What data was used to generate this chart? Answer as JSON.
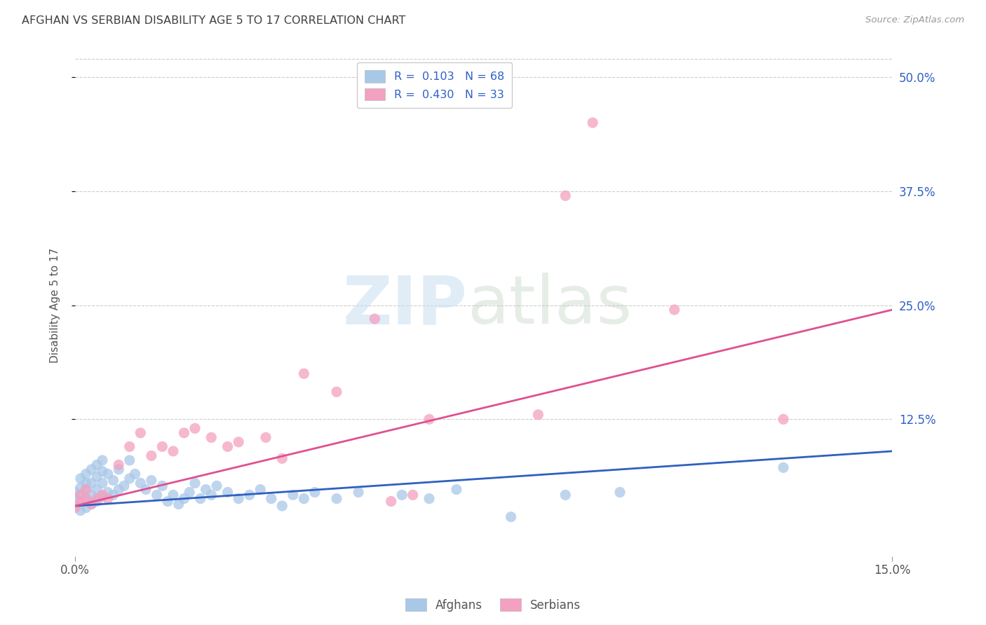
{
  "title": "AFGHAN VS SERBIAN DISABILITY AGE 5 TO 17 CORRELATION CHART",
  "source": "Source: ZipAtlas.com",
  "ylabel": "Disability Age 5 to 17",
  "ytick_labels": [
    "50.0%",
    "37.5%",
    "25.0%",
    "12.5%"
  ],
  "ytick_values": [
    0.5,
    0.375,
    0.25,
    0.125
  ],
  "xlim": [
    0.0,
    0.15
  ],
  "ylim": [
    -0.025,
    0.525
  ],
  "afghan_R": 0.103,
  "afghan_N": 68,
  "serbian_R": 0.43,
  "serbian_N": 33,
  "afghan_color": "#a8c8e8",
  "serbian_color": "#f4a0c0",
  "afghan_line_color": "#3060c0",
  "serbian_line_color": "#e05090",
  "legend_text_color": "#3060c8",
  "title_color": "#404040",
  "background_color": "#ffffff",
  "grid_color": "#cccccc",
  "afghan_line_y0": 0.03,
  "afghan_line_y1": 0.09,
  "serbian_line_y0": 0.03,
  "serbian_line_y1": 0.245,
  "afghans_x": [
    0.0,
    0.0,
    0.0,
    0.001,
    0.001,
    0.001,
    0.001,
    0.001,
    0.002,
    0.002,
    0.002,
    0.002,
    0.002,
    0.003,
    0.003,
    0.003,
    0.003,
    0.004,
    0.004,
    0.004,
    0.004,
    0.005,
    0.005,
    0.005,
    0.005,
    0.006,
    0.006,
    0.007,
    0.007,
    0.008,
    0.008,
    0.009,
    0.01,
    0.01,
    0.011,
    0.012,
    0.013,
    0.014,
    0.015,
    0.016,
    0.017,
    0.018,
    0.019,
    0.02,
    0.021,
    0.022,
    0.023,
    0.024,
    0.025,
    0.026,
    0.028,
    0.03,
    0.032,
    0.034,
    0.036,
    0.038,
    0.04,
    0.042,
    0.044,
    0.048,
    0.052,
    0.06,
    0.065,
    0.07,
    0.08,
    0.09,
    0.1,
    0.13
  ],
  "afghans_y": [
    0.03,
    0.038,
    0.045,
    0.025,
    0.035,
    0.042,
    0.05,
    0.06,
    0.028,
    0.038,
    0.048,
    0.055,
    0.065,
    0.032,
    0.042,
    0.055,
    0.07,
    0.035,
    0.048,
    0.062,
    0.075,
    0.04,
    0.055,
    0.068,
    0.08,
    0.045,
    0.065,
    0.042,
    0.058,
    0.048,
    0.07,
    0.052,
    0.06,
    0.08,
    0.065,
    0.055,
    0.048,
    0.058,
    0.042,
    0.052,
    0.035,
    0.042,
    0.032,
    0.038,
    0.045,
    0.055,
    0.038,
    0.048,
    0.042,
    0.052,
    0.045,
    0.038,
    0.042,
    0.048,
    0.038,
    0.03,
    0.042,
    0.038,
    0.045,
    0.038,
    0.045,
    0.042,
    0.038,
    0.048,
    0.018,
    0.042,
    0.045,
    0.072
  ],
  "serbians_x": [
    0.0,
    0.001,
    0.001,
    0.002,
    0.002,
    0.003,
    0.004,
    0.005,
    0.006,
    0.008,
    0.01,
    0.012,
    0.014,
    0.016,
    0.018,
    0.02,
    0.022,
    0.025,
    0.028,
    0.03,
    0.035,
    0.038,
    0.042,
    0.048,
    0.055,
    0.058,
    0.062,
    0.065,
    0.085,
    0.09,
    0.095,
    0.11,
    0.13
  ],
  "serbians_y": [
    0.028,
    0.035,
    0.042,
    0.038,
    0.048,
    0.032,
    0.038,
    0.042,
    0.038,
    0.075,
    0.095,
    0.11,
    0.085,
    0.095,
    0.09,
    0.11,
    0.115,
    0.105,
    0.095,
    0.1,
    0.105,
    0.082,
    0.175,
    0.155,
    0.235,
    0.035,
    0.042,
    0.125,
    0.13,
    0.37,
    0.45,
    0.245,
    0.125
  ]
}
